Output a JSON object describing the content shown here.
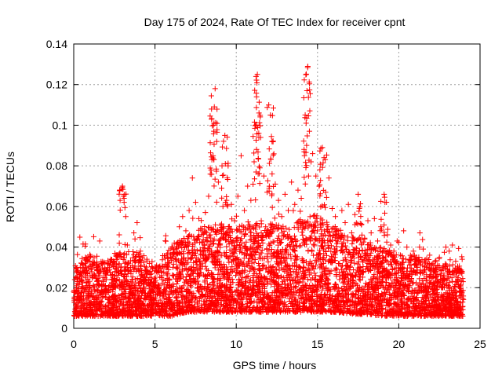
{
  "chart_data": {
    "type": "scatter",
    "title": "Day 175 of 2024, Rate Of TEC Index for receiver cpnt",
    "xlabel": "GPS time / hours",
    "ylabel": "ROTI / TECUs",
    "xlim": [
      0,
      25
    ],
    "ylim": [
      0,
      0.14
    ],
    "xticks": [
      0,
      5,
      10,
      15,
      20,
      25
    ],
    "yticks": [
      0,
      0.02,
      0.04,
      0.06,
      0.08,
      0.1,
      0.12,
      0.14
    ],
    "xtick_labels": [
      "0",
      "5",
      "10",
      "15",
      "20",
      "25"
    ],
    "ytick_labels": [
      "0",
      "0.02",
      "0.04",
      "0.06",
      "0.08",
      "0.1",
      "0.12",
      "0.14"
    ],
    "grid": true,
    "marker": "+",
    "color": "#ff0000",
    "series": [
      {
        "name": "ROTI",
        "points": [
          [
            0.0,
            0.018
          ],
          [
            0.2,
            0.022
          ],
          [
            0.4,
            0.03
          ],
          [
            0.6,
            0.016
          ],
          [
            0.8,
            0.034
          ],
          [
            1.0,
            0.021
          ],
          [
            1.2,
            0.026
          ],
          [
            1.4,
            0.019
          ],
          [
            1.6,
            0.043
          ],
          [
            1.8,
            0.028
          ],
          [
            2.0,
            0.024
          ],
          [
            2.2,
            0.031
          ],
          [
            2.4,
            0.018
          ],
          [
            2.6,
            0.036
          ],
          [
            2.8,
            0.046
          ],
          [
            3.0,
            0.07
          ],
          [
            3.05,
            0.065
          ],
          [
            3.1,
            0.062
          ],
          [
            3.2,
            0.055
          ],
          [
            3.3,
            0.041
          ],
          [
            3.5,
            0.03
          ],
          [
            3.7,
            0.047
          ],
          [
            3.9,
            0.052
          ],
          [
            4.1,
            0.038
          ],
          [
            4.3,
            0.025
          ],
          [
            4.5,
            0.034
          ],
          [
            4.7,
            0.028
          ],
          [
            4.9,
            0.022
          ],
          [
            5.1,
            0.031
          ],
          [
            5.3,
            0.018
          ],
          [
            5.5,
            0.024
          ],
          [
            5.7,
            0.027
          ],
          [
            5.9,
            0.021
          ],
          [
            6.1,
            0.03
          ],
          [
            6.3,
            0.039
          ],
          [
            6.5,
            0.05
          ],
          [
            6.7,
            0.055
          ],
          [
            6.9,
            0.048
          ],
          [
            7.1,
            0.058
          ],
          [
            7.3,
            0.074
          ],
          [
            7.5,
            0.062
          ],
          [
            7.7,
            0.054
          ],
          [
            7.9,
            0.049
          ],
          [
            8.1,
            0.057
          ],
          [
            8.3,
            0.065
          ],
          [
            8.5,
            0.083
          ],
          [
            8.6,
            0.1
          ],
          [
            8.65,
            0.109
          ],
          [
            8.7,
            0.118
          ],
          [
            8.8,
            0.092
          ],
          [
            8.9,
            0.072
          ],
          [
            9.1,
            0.069
          ],
          [
            9.3,
            0.095
          ],
          [
            9.5,
            0.08
          ],
          [
            9.7,
            0.061
          ],
          [
            9.9,
            0.053
          ],
          [
            10.1,
            0.065
          ],
          [
            10.3,
            0.085
          ],
          [
            10.5,
            0.058
          ],
          [
            10.7,
            0.07
          ],
          [
            10.9,
            0.063
          ],
          [
            11.1,
            0.082
          ],
          [
            11.2,
            0.1
          ],
          [
            11.25,
            0.114
          ],
          [
            11.3,
            0.125
          ],
          [
            11.4,
            0.106
          ],
          [
            11.5,
            0.094
          ],
          [
            11.7,
            0.075
          ],
          [
            11.9,
            0.067
          ],
          [
            12.0,
            0.11
          ],
          [
            12.1,
            0.105
          ],
          [
            12.2,
            0.092
          ],
          [
            12.4,
            0.071
          ],
          [
            12.6,
            0.063
          ],
          [
            12.8,
            0.055
          ],
          [
            13.0,
            0.066
          ],
          [
            13.2,
            0.058
          ],
          [
            13.4,
            0.072
          ],
          [
            13.6,
            0.061
          ],
          [
            13.8,
            0.068
          ],
          [
            14.0,
            0.064
          ],
          [
            14.2,
            0.085
          ],
          [
            14.3,
            0.101
          ],
          [
            14.35,
            0.117
          ],
          [
            14.4,
            0.129
          ],
          [
            14.5,
            0.097
          ],
          [
            14.6,
            0.082
          ],
          [
            14.7,
            0.086
          ],
          [
            14.9,
            0.075
          ],
          [
            15.1,
            0.07
          ],
          [
            15.3,
            0.089
          ],
          [
            15.4,
            0.084
          ],
          [
            15.5,
            0.067
          ],
          [
            15.7,
            0.074
          ],
          [
            15.9,
            0.059
          ],
          [
            16.1,
            0.055
          ],
          [
            16.3,
            0.048
          ],
          [
            16.5,
            0.058
          ],
          [
            16.7,
            0.052
          ],
          [
            16.9,
            0.061
          ],
          [
            17.1,
            0.047
          ],
          [
            17.3,
            0.056
          ],
          [
            17.5,
            0.066
          ],
          [
            17.7,
            0.051
          ],
          [
            17.9,
            0.044
          ],
          [
            18.1,
            0.053
          ],
          [
            18.3,
            0.047
          ],
          [
            18.5,
            0.054
          ],
          [
            18.7,
            0.043
          ],
          [
            18.9,
            0.05
          ],
          [
            19.1,
            0.066
          ],
          [
            19.15,
            0.062
          ],
          [
            19.3,
            0.046
          ],
          [
            19.5,
            0.041
          ],
          [
            19.7,
            0.038
          ],
          [
            19.9,
            0.043
          ],
          [
            20.1,
            0.036
          ],
          [
            20.3,
            0.048
          ],
          [
            20.5,
            0.04
          ],
          [
            20.7,
            0.034
          ],
          [
            20.9,
            0.038
          ],
          [
            21.1,
            0.031
          ],
          [
            21.3,
            0.047
          ],
          [
            21.5,
            0.039
          ],
          [
            21.7,
            0.03
          ],
          [
            21.9,
            0.036
          ],
          [
            22.1,
            0.032
          ],
          [
            22.3,
            0.028
          ],
          [
            22.5,
            0.035
          ],
          [
            22.7,
            0.03
          ],
          [
            22.9,
            0.04
          ],
          [
            23.1,
            0.038
          ],
          [
            23.3,
            0.041
          ],
          [
            23.5,
            0.033
          ],
          [
            23.7,
            0.027
          ],
          [
            23.9,
            0.034
          ]
        ]
      }
    ],
    "dense_band": {
      "description_values": [
        [
          0,
          0.006,
          0.033
        ],
        [
          1,
          0.006,
          0.036
        ],
        [
          2,
          0.006,
          0.033
        ],
        [
          3,
          0.006,
          0.038
        ],
        [
          4,
          0.006,
          0.036
        ],
        [
          5,
          0.006,
          0.031
        ],
        [
          6,
          0.006,
          0.04
        ],
        [
          7,
          0.008,
          0.046
        ],
        [
          8,
          0.008,
          0.05
        ],
        [
          9,
          0.008,
          0.052
        ],
        [
          10,
          0.008,
          0.05
        ],
        [
          11,
          0.008,
          0.055
        ],
        [
          12,
          0.008,
          0.052
        ],
        [
          13,
          0.008,
          0.05
        ],
        [
          14,
          0.008,
          0.054
        ],
        [
          15,
          0.008,
          0.056
        ],
        [
          16,
          0.008,
          0.05
        ],
        [
          17,
          0.007,
          0.046
        ],
        [
          18,
          0.007,
          0.043
        ],
        [
          19,
          0.006,
          0.04
        ],
        [
          20,
          0.006,
          0.037
        ],
        [
          21,
          0.006,
          0.036
        ],
        [
          22,
          0.006,
          0.034
        ],
        [
          23,
          0.006,
          0.032
        ],
        [
          24,
          0.006,
          0.03
        ]
      ]
    }
  }
}
